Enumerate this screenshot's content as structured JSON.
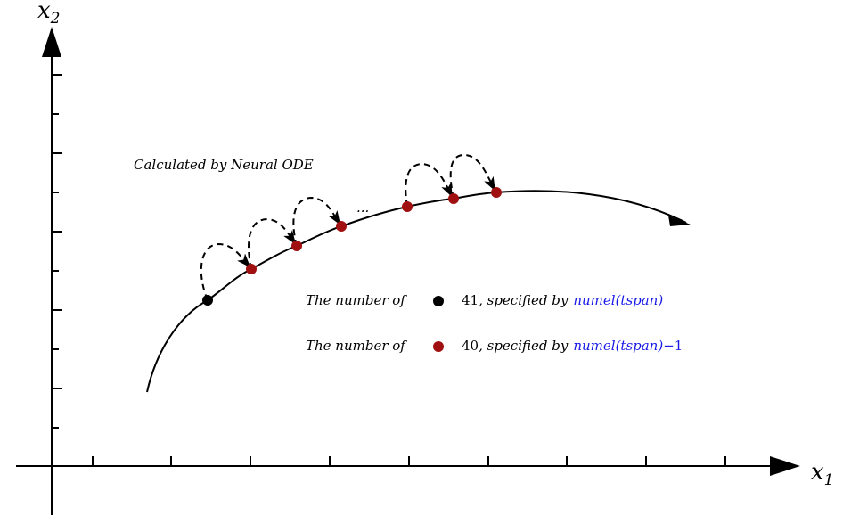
{
  "axes": {
    "x_label": "x",
    "x_sub": "1",
    "y_label": "x",
    "y_sub": "2"
  },
  "annotation": {
    "title": "Calculated by Neural ODE",
    "ellipsis": "..."
  },
  "legend": {
    "row1": {
      "prefix": "The number of",
      "count": "41",
      "middle": ", specified by",
      "func": "numel(tspan)",
      "suffix": "",
      "marker_color": "#000000"
    },
    "row2": {
      "prefix": "The number of",
      "count": "40",
      "middle": ", specified by",
      "func": "numel(tspan)",
      "suffix": "−1",
      "marker_color": "#a01010"
    }
  },
  "colors": {
    "black_point": "#000000",
    "red_point": "#a01010",
    "function_text": "#1a1ae6"
  }
}
